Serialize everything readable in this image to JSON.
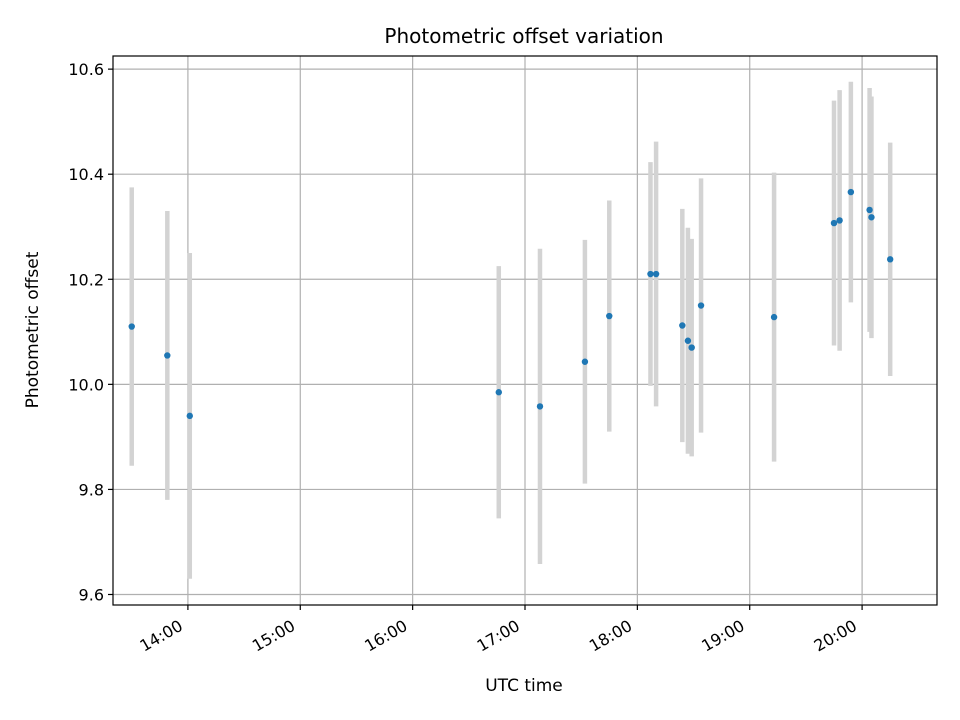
{
  "chart_data": {
    "type": "scatter",
    "title": "Photometric offset variation",
    "xlabel": "UTC time",
    "ylabel": "Photometric offset",
    "x_unit": "time",
    "xlim": [
      "13:20",
      "20:40"
    ],
    "ylim": [
      9.58,
      10.625
    ],
    "x_ticks": [
      "14:00",
      "15:00",
      "16:00",
      "17:00",
      "18:00",
      "19:00",
      "20:00"
    ],
    "y_ticks": [
      "9.6",
      "9.8",
      "10.0",
      "10.2",
      "10.4",
      "10.6"
    ],
    "y_tick_values": [
      9.6,
      9.8,
      10.0,
      10.2,
      10.4,
      10.6
    ],
    "grid": true,
    "colors": {
      "point": "#1f77b4",
      "error_bar": "#d3d3d3",
      "grid": "#b0b0b0"
    },
    "points": [
      {
        "x": "13:30",
        "y": 10.11,
        "err": 0.265
      },
      {
        "x": "13:49",
        "y": 10.055,
        "err": 0.275
      },
      {
        "x": "14:01",
        "y": 9.94,
        "err": 0.31
      },
      {
        "x": "16:46",
        "y": 9.985,
        "err": 0.24
      },
      {
        "x": "17:08",
        "y": 9.958,
        "err": 0.3
      },
      {
        "x": "17:32",
        "y": 10.043,
        "err": 0.232
      },
      {
        "x": "17:45",
        "y": 10.13,
        "err": 0.22
      },
      {
        "x": "18:07",
        "y": 10.21,
        "err": 0.213
      },
      {
        "x": "18:10",
        "y": 10.21,
        "err": 0.252
      },
      {
        "x": "18:24",
        "y": 10.112,
        "err": 0.222
      },
      {
        "x": "18:27",
        "y": 10.083,
        "err": 0.215
      },
      {
        "x": "18:29",
        "y": 10.07,
        "err": 0.207
      },
      {
        "x": "18:34",
        "y": 10.15,
        "err": 0.242
      },
      {
        "x": "19:13",
        "y": 10.128,
        "err": 0.275
      },
      {
        "x": "19:45",
        "y": 10.307,
        "err": 0.233
      },
      {
        "x": "19:48",
        "y": 10.312,
        "err": 0.248
      },
      {
        "x": "19:54",
        "y": 10.366,
        "err": 0.21
      },
      {
        "x": "20:04",
        "y": 10.332,
        "err": 0.232
      },
      {
        "x": "20:05",
        "y": 10.318,
        "err": 0.23
      },
      {
        "x": "20:15",
        "y": 10.238,
        "err": 0.222
      }
    ]
  }
}
